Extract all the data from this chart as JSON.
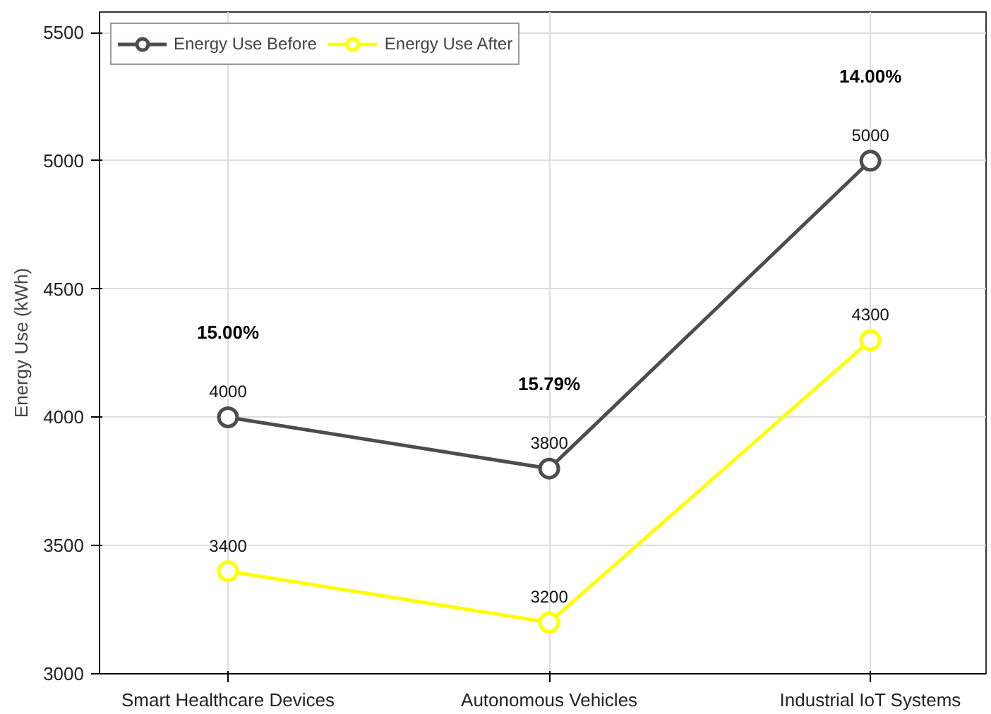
{
  "chart_data": {
    "type": "line",
    "ylabel": "Energy Use (kWh)",
    "categories": [
      "Smart Healthcare Devices",
      "Autonomous Vehicles",
      "Industrial IoT Systems"
    ],
    "series": [
      {
        "name": "Energy Use Before",
        "color": "#4d4d4d",
        "values": [
          4000,
          3800,
          5000
        ]
      },
      {
        "name": "Energy Use After",
        "color": "#ffff00",
        "values": [
          3400,
          3200,
          4300
        ]
      }
    ],
    "ylim": [
      3000,
      5580
    ],
    "yticks": [
      3000,
      3500,
      4000,
      4500,
      5000,
      5500
    ],
    "grid": true,
    "legend": "top left",
    "marker": "circle",
    "line_style": "solid",
    "data_labels": true,
    "annotations": [
      "15.00%",
      "15.79%",
      "14.00%"
    ]
  }
}
